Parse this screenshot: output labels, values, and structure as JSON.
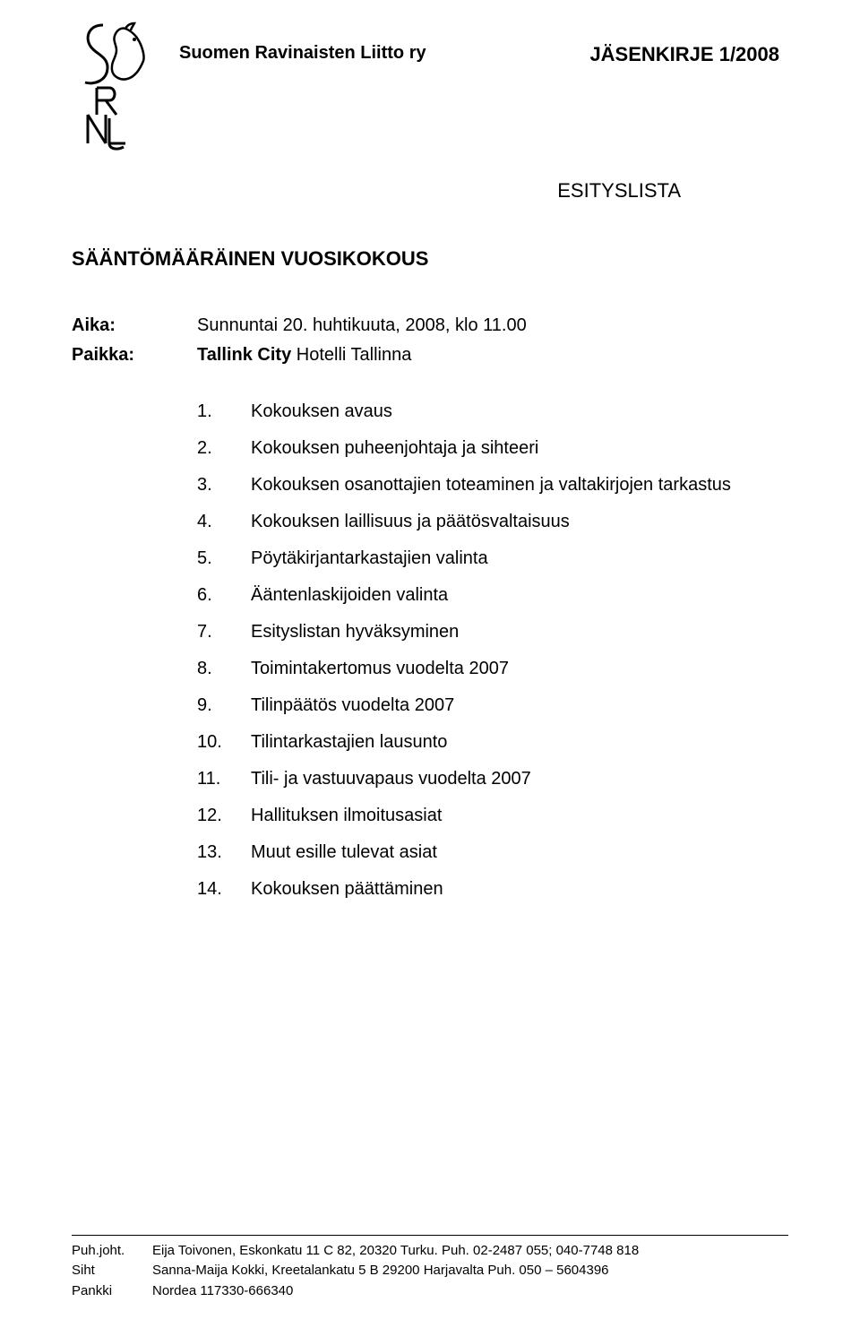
{
  "header": {
    "org_name": "Suomen Ravinaisten Liitto ry",
    "doc_label": "JÄSENKIRJE 1/2008"
  },
  "agenda_title": "ESITYSLISTA",
  "meeting_name": "SÄÄNTÖMÄÄRÄINEN VUOSIKOKOUS",
  "meta": {
    "aika_label": "Aika:",
    "aika_value": "Sunnuntai 20. huhtikuuta, 2008, klo 11.00",
    "paikka_label": "Paikka:",
    "paikka_value_bold": "Tallink City",
    "paikka_value_rest": " Hotelli Tallinna"
  },
  "agenda_items": [
    {
      "num": "1.",
      "text": "Kokouksen avaus"
    },
    {
      "num": "2.",
      "text": "Kokouksen puheenjohtaja ja sihteeri"
    },
    {
      "num": "3.",
      "text": "Kokouksen osanottajien toteaminen ja valtakirjojen tarkastus"
    },
    {
      "num": "4.",
      "text": "Kokouksen laillisuus ja päätösvaltaisuus"
    },
    {
      "num": "5.",
      "text": "Pöytäkirjantarkastajien valinta"
    },
    {
      "num": "6.",
      "text": "Ääntenlaskijoiden valinta"
    },
    {
      "num": "7.",
      "text": "Esityslistan hyväksyminen"
    },
    {
      "num": "8.",
      "text": "Toimintakertomus vuodelta 2007"
    },
    {
      "num": "9.",
      "text": "Tilinpäätös vuodelta 2007"
    },
    {
      "num": "10.",
      "text": "Tilintarkastajien lausunto"
    },
    {
      "num": "11.",
      "text": "Tili- ja vastuuvapaus vuodelta 2007"
    },
    {
      "num": "12.",
      "text": "Hallituksen ilmoitusasiat"
    },
    {
      "num": "13.",
      "text": "Muut esille tulevat asiat"
    },
    {
      "num": "14.",
      "text": "Kokouksen päättäminen"
    }
  ],
  "footer": {
    "lines": [
      {
        "label": "Puh.joht.",
        "value": "Eija Toivonen, Eskonkatu 11 C 82, 20320 Turku. Puh. 02-2487 055; 040-7748 818"
      },
      {
        "label": "Siht",
        "value": "Sanna-Maija Kokki, Kreetalankatu 5 B 29200 Harjavalta Puh. 050 – 5604396"
      },
      {
        "label": "Pankki",
        "value": "Nordea 117330-666340"
      }
    ]
  },
  "styling": {
    "background_color": "#ffffff",
    "text_color": "#000000",
    "font_family": "Arial",
    "org_name_fontsize": 20,
    "doc_label_fontsize": 22,
    "agenda_title_fontsize": 22,
    "meeting_name_fontsize": 22,
    "body_fontsize": 20,
    "footer_fontsize": 15
  }
}
